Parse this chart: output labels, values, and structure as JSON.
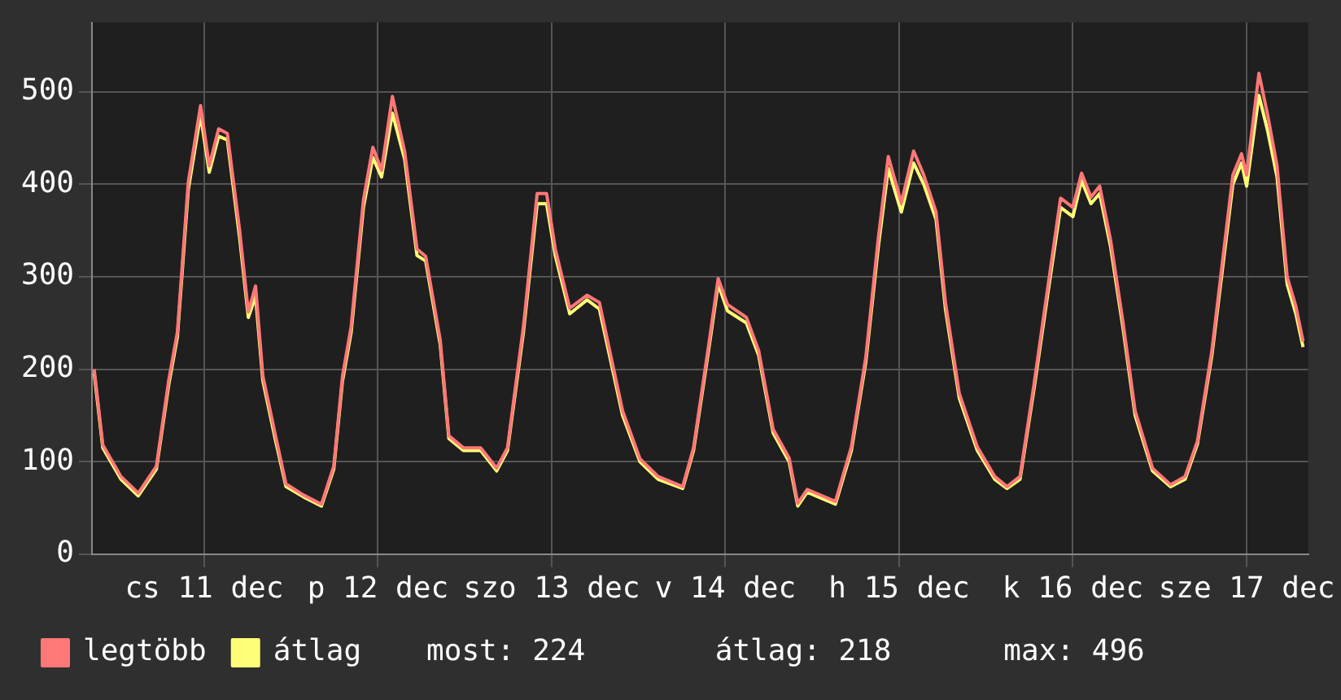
{
  "chart_data": {
    "type": "line",
    "x": [
      "--12-10T20:48",
      "--12-10T22:00",
      "--12-11T00:30",
      "--12-11T02:54",
      "--12-11T05:24",
      "--12-11T07:06",
      "--12-11T08:18",
      "--12-11T09:48",
      "--12-11T11:30",
      "--12-11T12:42",
      "--12-11T14:00",
      "--12-11T15:12",
      "--12-11T16:54",
      "--12-11T18:06",
      "--12-11T19:06",
      "--12-11T20:06",
      "--12-11T21:48",
      "--12-11T23:18",
      "--12-12T01:42",
      "--12-12T04:12",
      "--12-12T05:54",
      "--12-12T07:06",
      "--12-12T08:18",
      "--12-12T10:00",
      "--12-12T11:18",
      "--12-12T12:30",
      "--12-12T14:00",
      "--12-12T15:42",
      "--12-12T17:24",
      "--12-12T18:36",
      "--12-12T20:36",
      "--12-12T21:48",
      "--12-12T23:48",
      "--12-13T02:12",
      "--12-13T04:24",
      "--12-13T05:54",
      "--12-13T08:06",
      "--12-13T10:00",
      "--12-13T11:18",
      "--12-13T12:30",
      "--12-13T14:30",
      "--12-13T16:54",
      "--12-13T18:36",
      "--12-13T21:48",
      "--12-14T00:12",
      "--12-14T02:42",
      "--12-14T06:06",
      "--12-14T07:36",
      "--12-14T09:48",
      "--12-14T11:00",
      "--12-14T12:18",
      "--12-14T14:54",
      "--12-14T16:36",
      "--12-14T18:36",
      "--12-14T20:48",
      "--12-14T22:00",
      "--12-14T23:18",
      "--12-15T03:12",
      "--12-15T05:24",
      "--12-15T07:24",
      "--12-15T09:06",
      "--12-15T10:30",
      "--12-15T12:18",
      "--12-15T14:00",
      "--12-15T15:24",
      "--12-15T17:06",
      "--12-15T18:24",
      "--12-15T20:18",
      "--12-15T22:48",
      "--12-16T01:12",
      "--12-16T02:54",
      "--12-16T04:42",
      "--12-16T06:36",
      "--12-16T08:36",
      "--12-16T10:18",
      "--12-16T12:00",
      "--12-16T13:12",
      "--12-16T14:30",
      "--12-16T15:42",
      "--12-16T17:12",
      "--12-16T18:54",
      "--12-16T20:36",
      "--12-16T23:00",
      "--12-17T01:30",
      "--12-17T03:30",
      "--12-17T05:12",
      "--12-17T07:12",
      "--12-17T08:48",
      "--12-17T10:06",
      "--12-17T11:18",
      "--12-17T12:00",
      "--12-17T13:42",
      "--12-17T14:54",
      "--12-17T16:12",
      "--12-17T17:36",
      "--12-17T18:48",
      "--12-17T19:48"
    ],
    "series": [
      {
        "name": "legtöbb",
        "color": "#ff7777",
        "values": [
          200,
          118,
          84,
          66,
          95,
          188,
          240,
          402,
          485,
          420,
          460,
          455,
          350,
          262,
          290,
          193,
          130,
          76,
          64,
          54,
          95,
          192,
          246,
          383,
          440,
          415,
          495,
          435,
          330,
          322,
          232,
          128,
          115,
          115,
          93,
          115,
          246,
          390,
          390,
          330,
          266,
          280,
          272,
          155,
          103,
          84,
          73,
          115,
          232,
          298,
          270,
          256,
          220,
          135,
          104,
          55,
          70,
          57,
          116,
          213,
          340,
          430,
          380,
          436,
          410,
          370,
          272,
          174,
          116,
          84,
          73,
          84,
          182,
          292,
          385,
          375,
          412,
          386,
          398,
          340,
          252,
          155,
          93,
          75,
          84,
          122,
          220,
          325,
          410,
          433,
          410,
          520,
          475,
          420,
          300,
          268,
          230
        ]
      },
      {
        "name": "átlag",
        "color": "#ffff77",
        "values": [
          196,
          115,
          81,
          63,
          92,
          183,
          235,
          394,
          475,
          413,
          452,
          448,
          342,
          256,
          279,
          188,
          125,
          73,
          62,
          52,
          92,
          187,
          240,
          375,
          429,
          408,
          477,
          427,
          323,
          317,
          227,
          125,
          112,
          112,
          90,
          112,
          240,
          379,
          379,
          323,
          260,
          275,
          265,
          150,
          100,
          81,
          71,
          112,
          227,
          292,
          263,
          250,
          215,
          131,
          100,
          52,
          67,
          54,
          112,
          208,
          331,
          417,
          370,
          423,
          400,
          362,
          265,
          169,
          112,
          81,
          71,
          81,
          177,
          285,
          375,
          365,
          404,
          379,
          390,
          333,
          246,
          150,
          90,
          73,
          81,
          119,
          215,
          317,
          400,
          423,
          398,
          496,
          458,
          408,
          292,
          260,
          224
        ]
      }
    ],
    "xlim": [
      "--12-10T20:30",
      "--12-17T20:30"
    ],
    "xticks": [
      {
        "value": "--12-11T12:00",
        "label": "cs 11 dec"
      },
      {
        "value": "--12-12T12:00",
        "label": "p 12 dec"
      },
      {
        "value": "--12-13T12:00",
        "label": "szo 13 dec"
      },
      {
        "value": "--12-14T12:00",
        "label": "v 14 dec"
      },
      {
        "value": "--12-15T12:00",
        "label": "h 15 dec"
      },
      {
        "value": "--12-16T12:00",
        "label": "k 16 dec"
      },
      {
        "value": "--12-17T12:00",
        "label": "sze 17 dec"
      }
    ],
    "ylim": [
      0,
      575
    ],
    "yticks": [
      0,
      100,
      200,
      300,
      400,
      500
    ],
    "grid": true,
    "legend": "bottom",
    "annotations": [
      "most: 224",
      "átlag: 218",
      "max: 496"
    ]
  }
}
